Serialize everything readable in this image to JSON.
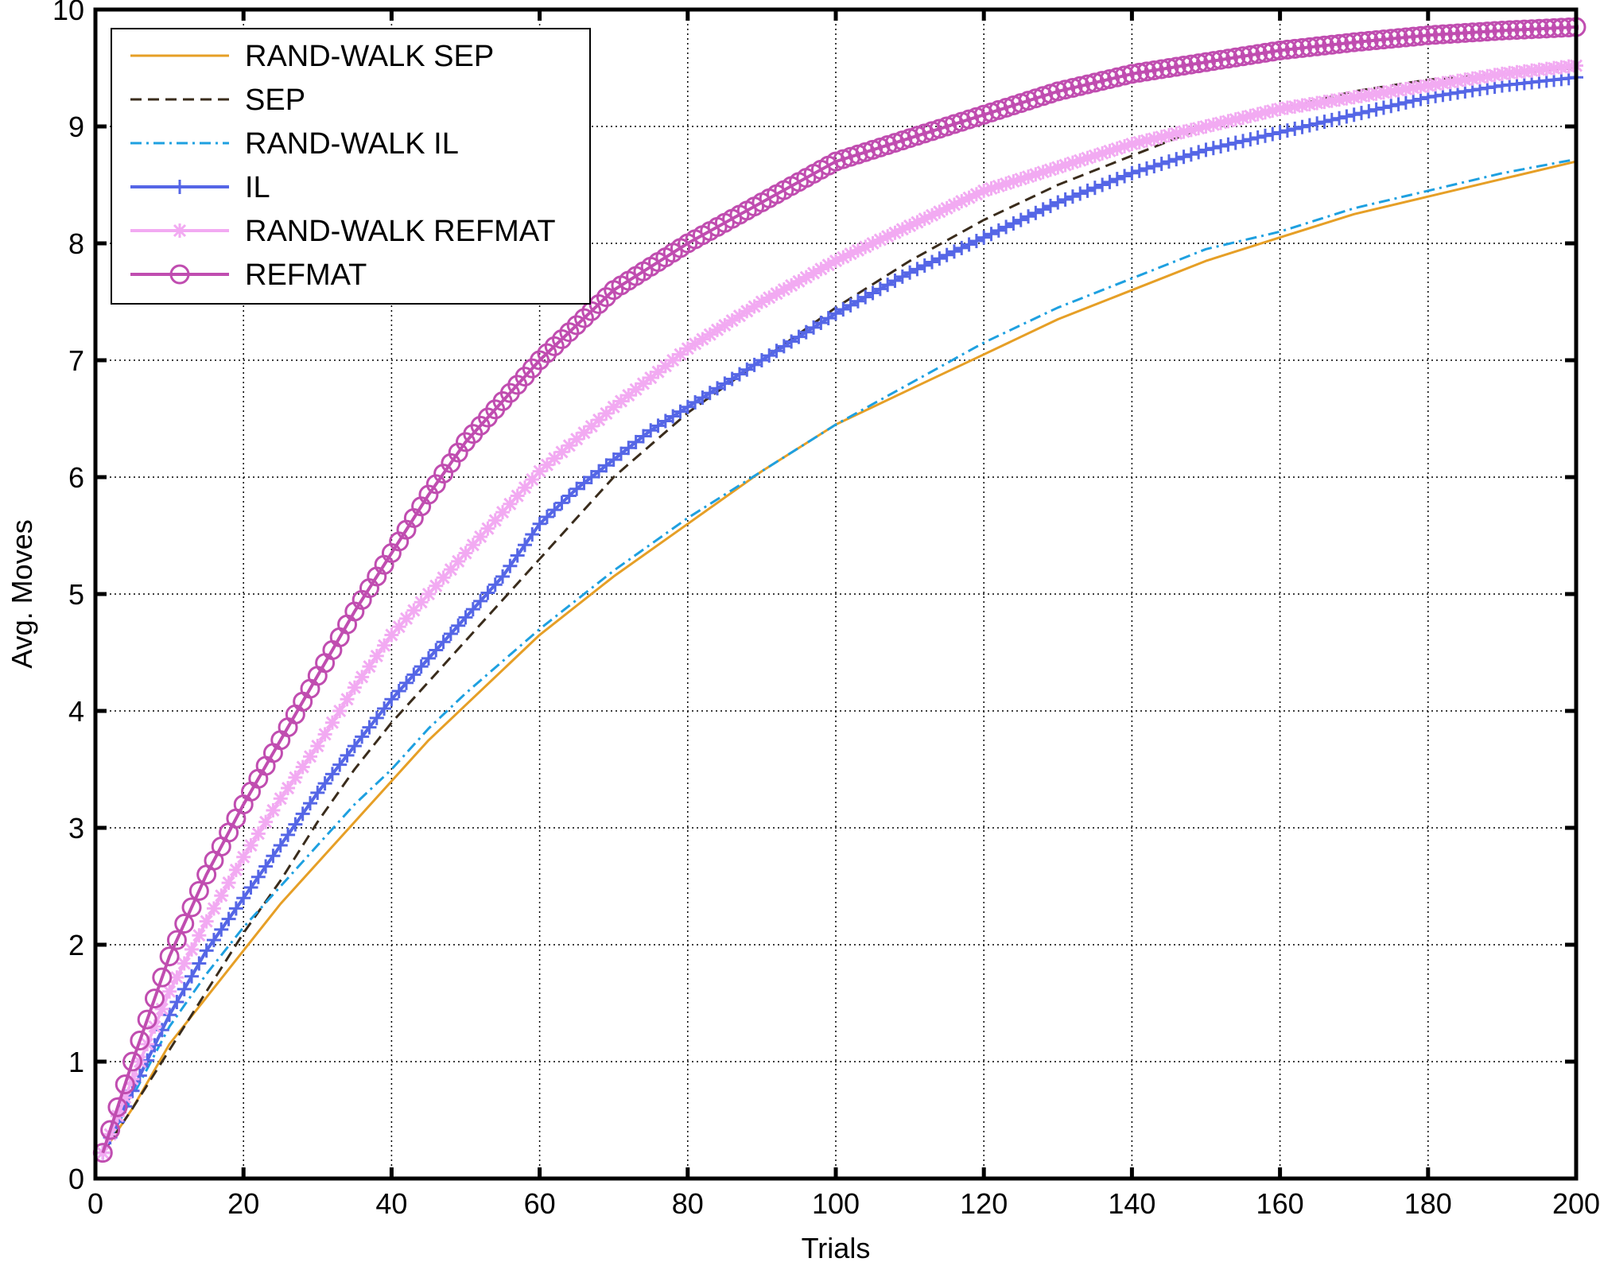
{
  "chart_data": {
    "type": "line",
    "title": "",
    "xlabel": "Trials",
    "ylabel": "Avg. Moves",
    "xlim": [
      0,
      200
    ],
    "ylim": [
      0,
      10
    ],
    "xticks": [
      0,
      20,
      40,
      60,
      80,
      100,
      120,
      140,
      160,
      180,
      200
    ],
    "yticks": [
      0,
      1,
      2,
      3,
      4,
      5,
      6,
      7,
      8,
      9,
      10
    ],
    "grid": true,
    "legend_position": "top-left",
    "series": [
      {
        "name": "RAND-WALK SEP",
        "color": "#e69f26",
        "style": "solid",
        "marker": "none",
        "x": [
          1,
          5,
          10,
          15,
          20,
          25,
          30,
          35,
          40,
          45,
          50,
          60,
          70,
          80,
          90,
          100,
          110,
          120,
          130,
          140,
          150,
          160,
          170,
          180,
          190,
          200
        ],
        "y": [
          0.22,
          0.6,
          1.15,
          1.55,
          1.95,
          2.35,
          2.7,
          3.05,
          3.4,
          3.75,
          4.05,
          4.65,
          5.15,
          5.6,
          6.05,
          6.45,
          6.75,
          7.05,
          7.35,
          7.6,
          7.85,
          8.05,
          8.25,
          8.4,
          8.55,
          8.7
        ]
      },
      {
        "name": "SEP",
        "color": "#3a2c1c",
        "style": "dashed",
        "marker": "none",
        "x": [
          1,
          5,
          10,
          15,
          20,
          25,
          30,
          35,
          40,
          45,
          50,
          55,
          60,
          70,
          80,
          90,
          100,
          110,
          120,
          130,
          140,
          150,
          160,
          170,
          180,
          190,
          200
        ],
        "y": [
          0.22,
          0.6,
          1.1,
          1.6,
          2.1,
          2.55,
          3.05,
          3.5,
          3.9,
          4.25,
          4.6,
          4.95,
          5.3,
          6.0,
          6.55,
          7.0,
          7.45,
          7.85,
          8.2,
          8.5,
          8.75,
          9.0,
          9.15,
          9.3,
          9.4,
          9.45,
          9.5
        ]
      },
      {
        "name": "RAND-WALK IL",
        "color": "#1ea0e0",
        "style": "dashdot",
        "marker": "none",
        "x": [
          1,
          5,
          10,
          15,
          20,
          25,
          30,
          35,
          40,
          45,
          50,
          60,
          70,
          80,
          90,
          100,
          110,
          120,
          130,
          140,
          150,
          160,
          170,
          180,
          190,
          200
        ],
        "y": [
          0.22,
          0.7,
          1.3,
          1.75,
          2.15,
          2.5,
          2.85,
          3.2,
          3.5,
          3.85,
          4.15,
          4.7,
          5.2,
          5.65,
          6.05,
          6.45,
          6.8,
          7.15,
          7.45,
          7.7,
          7.95,
          8.1,
          8.3,
          8.45,
          8.6,
          8.72
        ]
      },
      {
        "name": "IL",
        "color": "#5566e6",
        "style": "solid",
        "marker": "plus",
        "x": [
          1,
          5,
          10,
          15,
          20,
          25,
          30,
          35,
          40,
          45,
          50,
          55,
          60,
          65,
          70,
          75,
          80,
          90,
          100,
          110,
          120,
          130,
          140,
          150,
          160,
          170,
          180,
          190,
          200
        ],
        "y": [
          0.22,
          0.75,
          1.4,
          1.95,
          2.4,
          2.85,
          3.3,
          3.7,
          4.1,
          4.45,
          4.8,
          5.15,
          5.6,
          5.9,
          6.15,
          6.4,
          6.6,
          7.0,
          7.4,
          7.75,
          8.05,
          8.35,
          8.6,
          8.8,
          8.95,
          9.1,
          9.25,
          9.35,
          9.42
        ]
      },
      {
        "name": "RAND-WALK REFMAT",
        "color": "#f2aaf2",
        "style": "solid",
        "marker": "asterisk",
        "x": [
          1,
          5,
          10,
          15,
          20,
          25,
          30,
          35,
          40,
          45,
          50,
          55,
          60,
          70,
          80,
          90,
          100,
          110,
          120,
          130,
          140,
          150,
          160,
          170,
          180,
          190,
          200
        ],
        "y": [
          0.22,
          0.85,
          1.6,
          2.2,
          2.75,
          3.25,
          3.7,
          4.2,
          4.65,
          5.0,
          5.35,
          5.7,
          6.05,
          6.6,
          7.1,
          7.5,
          7.85,
          8.15,
          8.45,
          8.65,
          8.85,
          9.0,
          9.15,
          9.25,
          9.35,
          9.45,
          9.52
        ]
      },
      {
        "name": "REFMAT",
        "color": "#c04db0",
        "style": "solid",
        "marker": "circle",
        "x": [
          1,
          5,
          10,
          15,
          20,
          25,
          30,
          35,
          40,
          45,
          50,
          55,
          60,
          65,
          70,
          75,
          80,
          90,
          100,
          110,
          120,
          130,
          140,
          150,
          160,
          170,
          180,
          190,
          200
        ],
        "y": [
          0.22,
          1.0,
          1.9,
          2.6,
          3.2,
          3.75,
          4.3,
          4.85,
          5.35,
          5.85,
          6.3,
          6.65,
          7.0,
          7.3,
          7.6,
          7.8,
          8.0,
          8.35,
          8.7,
          8.9,
          9.1,
          9.3,
          9.45,
          9.55,
          9.65,
          9.72,
          9.78,
          9.82,
          9.85
        ]
      }
    ]
  }
}
